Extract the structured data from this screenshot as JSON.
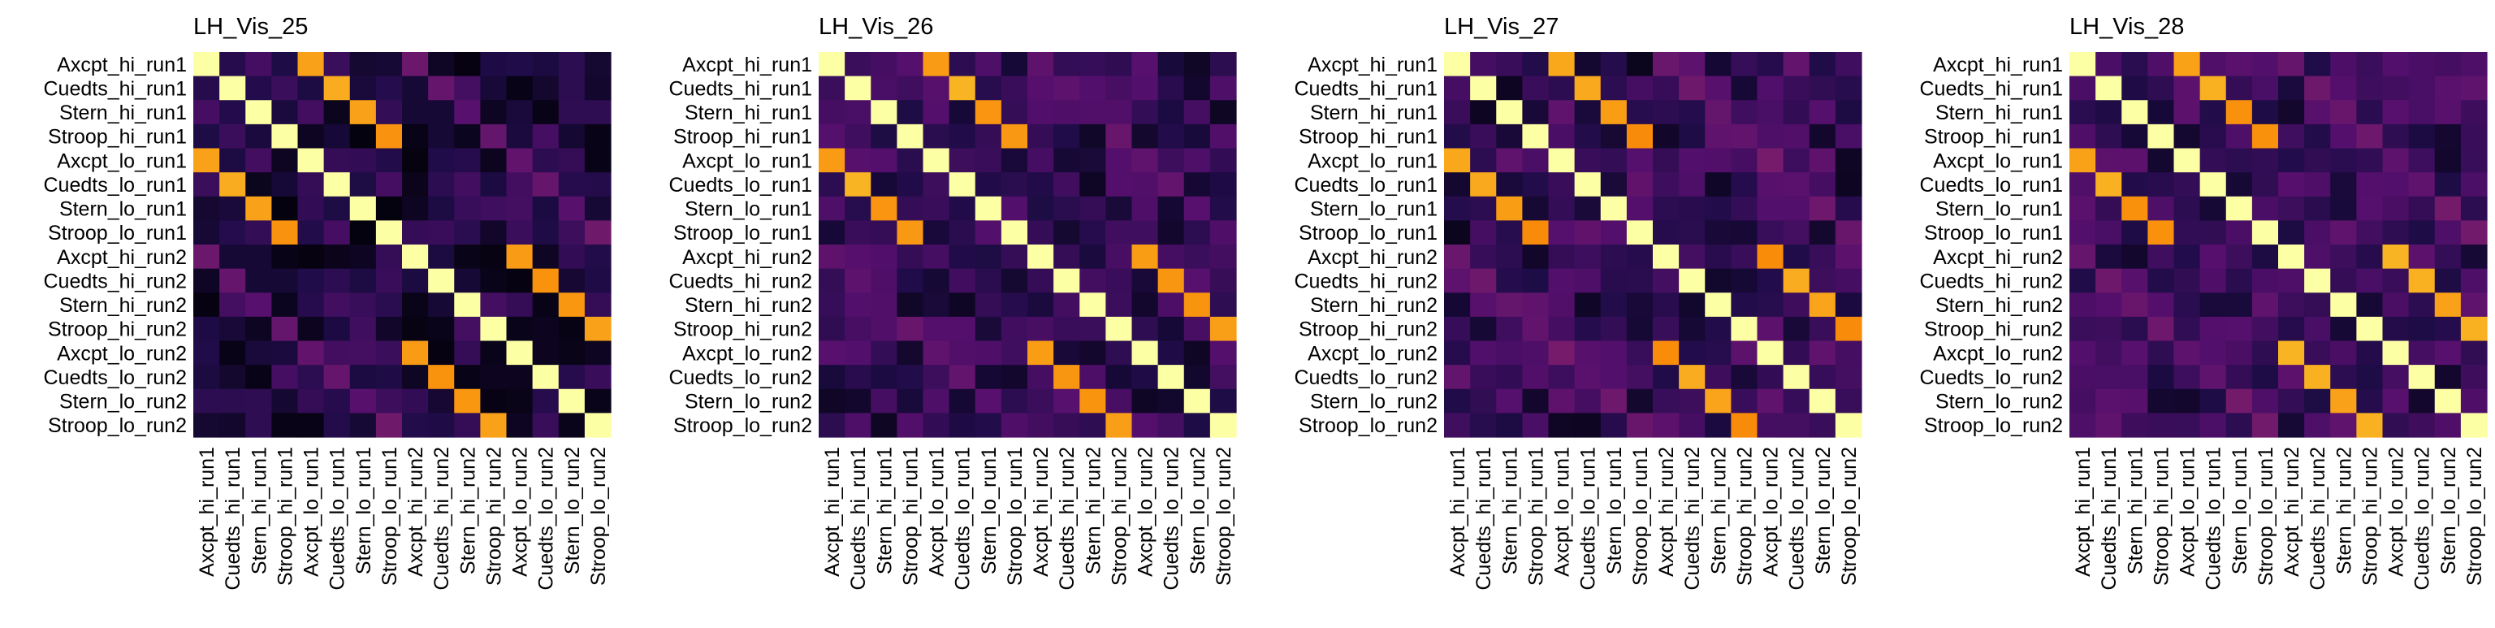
{
  "chart_data": [
    {
      "type": "heatmap",
      "title": "LH_Vis_25",
      "colormap": "inferno",
      "labels": [
        "Axcpt_hi_run1",
        "Cuedts_hi_run1",
        "Stern_hi_run1",
        "Stroop_hi_run1",
        "Axcpt_lo_run1",
        "Cuedts_lo_run1",
        "Stern_lo_run1",
        "Stroop_lo_run1",
        "Axcpt_hi_run2",
        "Cuedts_hi_run2",
        "Stern_hi_run2",
        "Stroop_hi_run2",
        "Axcpt_lo_run2",
        "Cuedts_lo_run2",
        "Stern_lo_run2",
        "Stroop_lo_run2"
      ],
      "block_diagonal": 0.78,
      "cross_run_diagonal": 0.28,
      "off_diagonal": 0.12,
      "off_diagonal_spread": 0.1
    },
    {
      "type": "heatmap",
      "title": "LH_Vis_26",
      "colormap": "inferno",
      "labels": [
        "Axcpt_hi_run1",
        "Cuedts_hi_run1",
        "Stern_hi_run1",
        "Stroop_hi_run1",
        "Axcpt_lo_run1",
        "Cuedts_lo_run1",
        "Stern_lo_run1",
        "Stroop_lo_run1",
        "Axcpt_hi_run2",
        "Cuedts_hi_run2",
        "Stern_hi_run2",
        "Stroop_hi_run2",
        "Axcpt_lo_run2",
        "Cuedts_lo_run2",
        "Stern_lo_run2",
        "Stroop_lo_run2"
      ],
      "block_diagonal": 0.8,
      "cross_run_diagonal": 0.26,
      "off_diagonal": 0.16,
      "off_diagonal_spread": 0.1
    },
    {
      "type": "heatmap",
      "title": "LH_Vis_27",
      "colormap": "inferno",
      "labels": [
        "Axcpt_hi_run1",
        "Cuedts_hi_run1",
        "Stern_hi_run1",
        "Stroop_hi_run1",
        "Axcpt_lo_run1",
        "Cuedts_lo_run1",
        "Stern_lo_run1",
        "Stroop_lo_run1",
        "Axcpt_hi_run2",
        "Cuedts_hi_run2",
        "Stern_hi_run2",
        "Stroop_hi_run2",
        "Axcpt_lo_run2",
        "Cuedts_lo_run2",
        "Stern_lo_run2",
        "Stroop_lo_run2"
      ],
      "block_diagonal": 0.78,
      "cross_run_diagonal": 0.3,
      "off_diagonal": 0.17,
      "off_diagonal_spread": 0.12
    },
    {
      "type": "heatmap",
      "title": "LH_Vis_28",
      "colormap": "inferno",
      "labels": [
        "Axcpt_hi_run1",
        "Cuedts_hi_run1",
        "Stern_hi_run1",
        "Stroop_hi_run1",
        "Axcpt_lo_run1",
        "Cuedts_lo_run1",
        "Stern_lo_run1",
        "Stroop_lo_run1",
        "Axcpt_hi_run2",
        "Cuedts_hi_run2",
        "Stern_hi_run2",
        "Stroop_hi_run2",
        "Axcpt_lo_run2",
        "Cuedts_lo_run2",
        "Stern_lo_run2",
        "Stroop_lo_run2"
      ],
      "block_diagonal": 0.8,
      "cross_run_diagonal": 0.3,
      "off_diagonal": 0.18,
      "off_diagonal_spread": 0.1
    }
  ]
}
